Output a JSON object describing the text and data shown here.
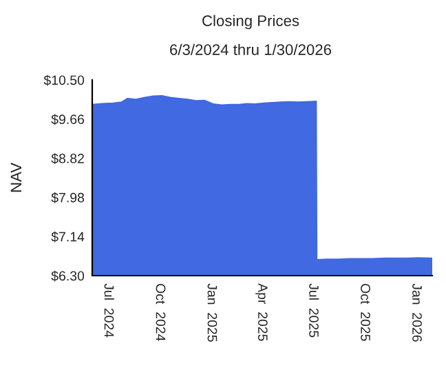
{
  "chart_data": {
    "type": "area",
    "title": "Closing Prices",
    "subtitle": "6/3/2024 thru 1/30/2026",
    "ylabel": "NAV",
    "x": [
      "2024-06-03",
      "2024-06-20",
      "2024-07-10",
      "2024-07-25",
      "2024-08-05",
      "2024-08-20",
      "2024-09-05",
      "2024-09-20",
      "2024-10-05",
      "2024-10-20",
      "2024-11-05",
      "2024-11-20",
      "2024-12-05",
      "2024-12-20",
      "2025-01-05",
      "2025-01-20",
      "2025-02-05",
      "2025-02-20",
      "2025-03-05",
      "2025-03-20",
      "2025-04-05",
      "2025-04-20",
      "2025-05-05",
      "2025-05-20",
      "2025-06-05",
      "2025-06-20",
      "2025-07-07",
      "2025-07-08",
      "2025-07-25",
      "2025-08-15",
      "2025-09-05",
      "2025-09-25",
      "2025-10-15",
      "2025-11-05",
      "2025-11-25",
      "2025-12-15",
      "2026-01-05",
      "2026-01-30"
    ],
    "series": [
      {
        "color": "#4169e1",
        "values": [
          9.97,
          9.99,
          10.0,
          10.02,
          10.1,
          10.08,
          10.12,
          10.15,
          10.16,
          10.12,
          10.1,
          10.08,
          10.05,
          10.06,
          9.98,
          9.96,
          9.97,
          9.97,
          9.99,
          9.98,
          10.0,
          10.01,
          10.02,
          10.03,
          10.02,
          10.03,
          10.04,
          6.64,
          6.65,
          6.65,
          6.66,
          6.66,
          6.66,
          6.67,
          6.67,
          6.67,
          6.68,
          6.67
        ]
      }
    ],
    "xlim": [
      "2024-06-03",
      "2026-01-30"
    ],
    "xticks": [
      {
        "value": "2024-07-01",
        "label": "Jul  2024"
      },
      {
        "value": "2024-10-01",
        "label": "Oct  2024"
      },
      {
        "value": "2025-01-01",
        "label": "Jan  2025"
      },
      {
        "value": "2025-04-01",
        "label": "Apr  2025"
      },
      {
        "value": "2025-07-01",
        "label": "Jul  2025"
      },
      {
        "value": "2025-10-01",
        "label": "Oct  2025"
      },
      {
        "value": "2026-01-01",
        "label": "Jan  2026"
      }
    ],
    "ylim": [
      6.3,
      10.5
    ],
    "yticks": [
      {
        "value": 6.3,
        "label": "$6.30"
      },
      {
        "value": 7.14,
        "label": "$7.14"
      },
      {
        "value": 7.98,
        "label": "$7.98"
      },
      {
        "value": 8.82,
        "label": "$8.82"
      },
      {
        "value": 9.66,
        "label": "$9.66"
      },
      {
        "value": 10.5,
        "label": "$10.50"
      }
    ],
    "grid": false,
    "legend": false
  }
}
